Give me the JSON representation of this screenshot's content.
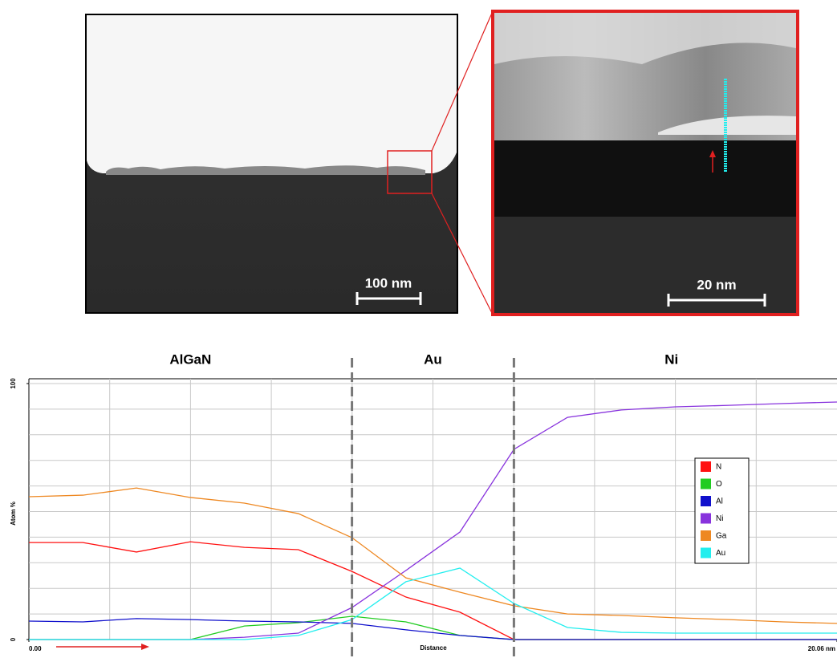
{
  "images": {
    "overview": {
      "scale_bar": "100 nm"
    },
    "zoom": {
      "scale_bar": "20 nm"
    }
  },
  "chart_data": {
    "type": "line",
    "regions": [
      "AlGaN",
      "Au",
      "Ni"
    ],
    "boundaries": [
      8.02,
      12.04
    ],
    "xlabel": "Distance",
    "ylabel": "Atom %",
    "xlim": [
      0,
      20.06
    ],
    "ylim": [
      0,
      100
    ],
    "xticks": [
      {
        "value": 0,
        "label": "0.00"
      },
      {
        "value": 20.06,
        "label": "20.06 nm"
      }
    ],
    "yticks": [
      0,
      100
    ],
    "xgrid": [
      2.006,
      4.012,
      6.018,
      8.024,
      10.03,
      12.036,
      14.042,
      16.048,
      18.054
    ],
    "ygrid": [
      10,
      20,
      30,
      40,
      50,
      60,
      70,
      80,
      90,
      100
    ],
    "legend": "right",
    "x": [
      0,
      1.34,
      2.67,
      4.01,
      5.35,
      6.69,
      8.02,
      9.36,
      10.7,
      12.04,
      13.37,
      14.71,
      16.05,
      17.38,
      18.72,
      20.06
    ],
    "series": [
      {
        "name": "N",
        "color": "#ff1010",
        "values": [
          37.9,
          37.9,
          34.2,
          38.2,
          36.0,
          35.1,
          26.6,
          16.6,
          10.7,
          0,
          0,
          0,
          0,
          0,
          0,
          0
        ]
      },
      {
        "name": "O",
        "color": "#22cc22",
        "values": [
          0,
          0,
          0,
          0,
          5.3,
          6.6,
          9.1,
          6.9,
          1.6,
          0,
          0,
          0,
          0,
          0,
          0,
          0
        ]
      },
      {
        "name": "Al",
        "color": "#1010cc",
        "values": [
          7.2,
          6.9,
          8.2,
          7.8,
          7.2,
          6.9,
          6.3,
          3.8,
          1.6,
          0,
          0,
          0,
          0,
          0,
          0,
          0
        ]
      },
      {
        "name": "Ni",
        "color": "#8833dd",
        "values": [
          0,
          0,
          0,
          0,
          0.9,
          2.5,
          12.5,
          27.0,
          42.0,
          74.3,
          86.8,
          89.7,
          90.9,
          91.5,
          92.2,
          92.8
        ]
      },
      {
        "name": "Ga",
        "color": "#ee8822",
        "values": [
          55.8,
          56.4,
          59.2,
          55.5,
          53.3,
          49.2,
          39.8,
          24.1,
          18.5,
          13.2,
          10.0,
          9.4,
          8.5,
          7.8,
          6.9,
          6.3
        ]
      },
      {
        "name": "Au",
        "color": "#22eeee",
        "values": [
          0,
          0,
          0,
          0,
          0,
          1.6,
          7.8,
          22.6,
          27.9,
          14.1,
          4.7,
          2.8,
          2.5,
          2.5,
          2.5,
          2.5
        ]
      }
    ]
  }
}
